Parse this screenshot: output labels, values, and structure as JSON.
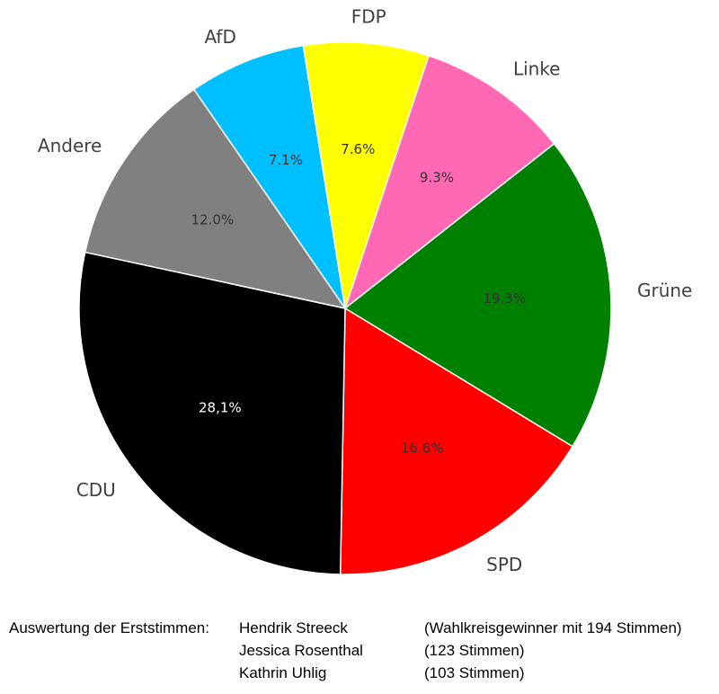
{
  "chart_data": {
    "type": "pie",
    "title": "",
    "slices": [
      {
        "label": "Linke",
        "value": 9.3,
        "value_label": "9.3%",
        "color": "#ff69b4",
        "text_color": "#333333"
      },
      {
        "label": "Grüne",
        "value": 19.3,
        "value_label": "19.3%",
        "color": "#008000",
        "text_color": "#333333"
      },
      {
        "label": "SPD",
        "value": 16.6,
        "value_label": "16.6%",
        "color": "#ff0000",
        "text_color": "#333333"
      },
      {
        "label": "CDU",
        "value": 28.1,
        "value_label": "28,1%",
        "color": "#000000",
        "text_color": "#ffffff"
      },
      {
        "label": "Andere",
        "value": 12.0,
        "value_label": "12.0%",
        "color": "#808080",
        "text_color": "#333333"
      },
      {
        "label": "AfD",
        "value": 7.1,
        "value_label": "7.1%",
        "color": "#00bfff",
        "text_color": "#333333"
      },
      {
        "label": "FDP",
        "value": 7.6,
        "value_label": "7.6%",
        "color": "#ffff00",
        "text_color": "#333333"
      }
    ]
  },
  "footer": {
    "heading": "Auswertung der Erststimmen:",
    "candidates": [
      {
        "name": "Hendrik Streeck",
        "note": "(Wahlkreisgewinner mit 194 Stimmen)"
      },
      {
        "name": "Jessica Rosenthal",
        "note": "(123 Stimmen)"
      },
      {
        "name": "Kathrin Uhlig",
        "note": "(103 Stimmen)"
      }
    ]
  }
}
